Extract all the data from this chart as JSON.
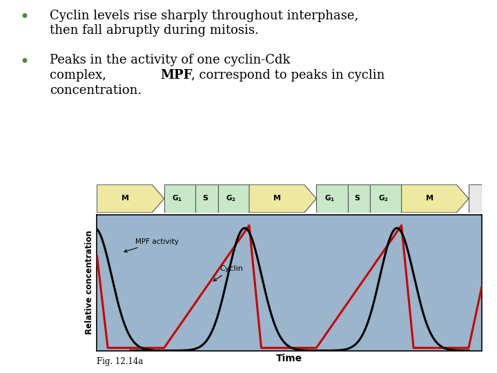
{
  "bullet1_line1": "Cyclin levels rise sharply throughout interphase,",
  "bullet1_line2": "then fall abruptly during mitosis.",
  "bullet2_line1": "Peaks in the activity of one cyclin-Cdk",
  "bullet2_line2a": "complex, ",
  "bullet2_line2b": "MPF",
  "bullet2_line2c": ", correspond to peaks in cyclin",
  "bullet2_line3": "concentration.",
  "bullet_color": "#4a8a3a",
  "text_color": "#000000",
  "fig_label": "Fig. 12.14a",
  "xlabel": "Time",
  "ylabel": "Relative concentration",
  "plot_bg": "#9ab5cc",
  "cyclin_color": "#cc0000",
  "mpf_color": "#000000",
  "phases": [
    "M",
    "G1",
    "S",
    "G2",
    "M",
    "G1",
    "S",
    "G2",
    "M",
    ""
  ],
  "phase_widths": [
    1.5,
    0.7,
    0.5,
    0.7,
    1.5,
    0.7,
    0.5,
    0.7,
    1.5,
    0.3
  ],
  "phase_colors_face": [
    "#eee8a0",
    "#c8e8c8",
    "#c8e8c8",
    "#c8e8c8",
    "#eee8a0",
    "#c8e8c8",
    "#c8e8c8",
    "#c8e8c8",
    "#eee8a0",
    "#e8e8e8"
  ],
  "mpf_label": "MPF activity",
  "cyclin_label": "Cyclin"
}
